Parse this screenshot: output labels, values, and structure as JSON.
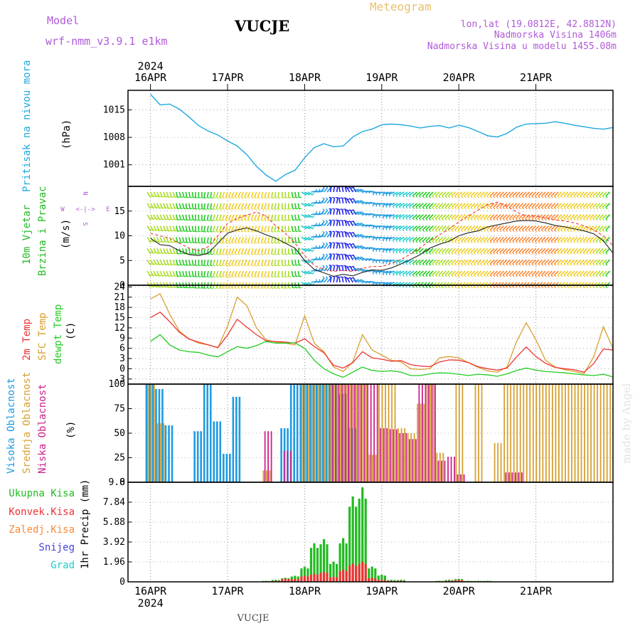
{
  "header": {
    "model_label": "Model",
    "model_name": "wrf-nmm_v3.9.1 e1km",
    "station": "VUCJE",
    "product": "Meteogram",
    "lonlat": "lon,lat (19.0812E, 42.8812N)",
    "elevation": "Nadmorska Visina 1406m",
    "model_elevation": "Nadmorska Visina u modelu 1455.08m",
    "footer_station": "VUCJE",
    "credit": "made by Angel"
  },
  "colors": {
    "pressure": "#1ea8e0",
    "wind_speed": "#222222",
    "wind_gust": "#ee3333",
    "temp_2m": "#ee3333",
    "temp_sfc": "#d8a030",
    "temp_dew": "#22cc22",
    "cloud_high": "#1e9be0",
    "cloud_mid": "#d8a030",
    "cloud_low": "#cc2288",
    "precip_total": "#22bb22",
    "precip_conv": "#ee3333",
    "precip_frozen": "#ff8833",
    "precip_snow": "#4444dd",
    "precip_graupel": "#22cccc",
    "header_purple": "#b05ad8",
    "header_orange": "#e8c070"
  },
  "chart_data": [
    {
      "type": "line",
      "panel": "pressure",
      "ylabel": [
        "Pritisak na nivou mora",
        "(hPa)"
      ],
      "yticks": [
        1001,
        1008,
        1015
      ],
      "ylim": [
        995.5,
        1020
      ],
      "year": "2024",
      "x_categories": [
        "16APR",
        "17APR",
        "18APR",
        "19APR",
        "20APR",
        "21APR"
      ],
      "x_hours": [
        0,
        3,
        6,
        9,
        12,
        15,
        18,
        21,
        24,
        27,
        30,
        33,
        36,
        39,
        42,
        45,
        48,
        51,
        54,
        57,
        60,
        63,
        66,
        69,
        72,
        75,
        78,
        81,
        84,
        87,
        90,
        93,
        96,
        99,
        102,
        105,
        108,
        111,
        114,
        117,
        120,
        123,
        126,
        129,
        132,
        135,
        138,
        141,
        144
      ],
      "series": [
        {
          "values": [
            1019.0,
            1016.3,
            1016.5,
            1015.2,
            1013.2,
            1011.0,
            1009.6,
            1008.6,
            1007.1,
            1005.8,
            1003.6,
            1000.6,
            998.4,
            996.8,
            998.5,
            999.6,
            1002.8,
            1005.4,
            1006.4,
            1005.6,
            1005.8,
            1008.1,
            1009.5,
            1010.1,
            1011.2,
            1011.4,
            1011.2,
            1010.9,
            1010.4,
            1010.8,
            1011.0,
            1010.4,
            1011.1,
            1010.5,
            1009.5,
            1008.4,
            1008.1,
            1009.0,
            1010.6,
            1011.4,
            1011.5,
            1011.6,
            1012.0,
            1011.6,
            1011.1,
            1010.7,
            1010.3,
            1010.1,
            1010.5
          ]
        }
      ]
    },
    {
      "type": "line",
      "panel": "wind",
      "ylabel": [
        "10m Vjetar",
        "Brzina i Pravac",
        "(m/s)"
      ],
      "compass_labels": [
        "N",
        "S",
        "W",
        "E"
      ],
      "yticks": [
        0,
        5,
        10,
        15
      ],
      "ylim": [
        0,
        20
      ],
      "x_hours": [
        0,
        3,
        6,
        9,
        12,
        15,
        18,
        21,
        24,
        27,
        30,
        33,
        36,
        39,
        42,
        45,
        48,
        51,
        54,
        57,
        60,
        63,
        66,
        69,
        72,
        75,
        78,
        81,
        84,
        87,
        90,
        93,
        96,
        99,
        102,
        105,
        108,
        111,
        114,
        117,
        120,
        123,
        126,
        129,
        132,
        135,
        138,
        141,
        144
      ],
      "series": [
        {
          "name": "speed",
          "values": [
            9.5,
            8.2,
            8.0,
            7.0,
            6.2,
            6.0,
            6.5,
            8.5,
            10.5,
            11.2,
            11.6,
            11.0,
            10.2,
            9.5,
            8.5,
            7.5,
            5.0,
            3.2,
            2.5,
            1.8,
            2.2,
            1.9,
            2.6,
            3.1,
            3.0,
            3.5,
            4.3,
            5.2,
            6.2,
            7.5,
            8.3,
            8.9,
            10.0,
            10.6,
            11.0,
            11.8,
            12.2,
            12.6,
            13.0,
            13.1,
            13.0,
            12.6,
            12.1,
            11.8,
            11.4,
            11.0,
            10.4,
            9.0,
            6.5
          ]
        },
        {
          "name": "gust",
          "values": [
            10.5,
            10.0,
            9.5,
            8.5,
            7.5,
            7.0,
            7.8,
            10.0,
            12.5,
            13.5,
            14.2,
            14.8,
            14.0,
            12.0,
            10.5,
            8.5,
            6.0,
            4.0,
            3.2,
            2.8,
            3.0,
            2.8,
            3.4,
            3.8,
            3.8,
            4.4,
            5.2,
            6.3,
            7.6,
            9.0,
            10.2,
            11.4,
            12.8,
            14.0,
            15.2,
            16.3,
            16.8,
            16.0,
            14.8,
            14.0,
            14.0,
            13.6,
            13.2,
            13.0,
            12.6,
            12.0,
            11.2,
            10.0,
            8.0
          ]
        }
      ],
      "direction_deg": [
        150,
        155,
        160,
        165,
        170,
        180,
        190,
        195,
        200,
        205,
        205,
        200,
        195,
        190,
        180,
        170,
        120,
        80,
        40,
        10,
        350,
        330,
        300,
        280,
        260,
        250,
        240,
        235,
        230,
        225,
        225,
        225,
        225,
        225,
        225,
        225,
        225,
        225,
        225,
        225,
        225,
        225,
        225,
        225,
        225,
        225,
        225,
        225,
        225
      ]
    },
    {
      "type": "line",
      "panel": "temperature",
      "ylabel": [
        "2m Temp",
        "SFC Temp",
        "dewpt Temp",
        "(C)"
      ],
      "yticks": [
        -3,
        0,
        3,
        6,
        9,
        12,
        15,
        18,
        21,
        24
      ],
      "ylim": [
        -4.5,
        24.5
      ],
      "x_hours": [
        0,
        3,
        6,
        9,
        12,
        15,
        18,
        21,
        24,
        27,
        30,
        33,
        36,
        39,
        42,
        45,
        48,
        51,
        54,
        57,
        60,
        63,
        66,
        69,
        72,
        75,
        78,
        81,
        84,
        87,
        90,
        93,
        96,
        99,
        102,
        105,
        108,
        111,
        114,
        117,
        120,
        123,
        126,
        129,
        132,
        135,
        138,
        141,
        144
      ],
      "series": [
        {
          "name": "2m Temp",
          "values": [
            15.0,
            16.6,
            13.8,
            10.7,
            8.7,
            7.8,
            7.0,
            6.2,
            9.9,
            14.5,
            12.2,
            10.0,
            8.2,
            8.0,
            7.8,
            7.5,
            8.8,
            6.5,
            4.7,
            1.0,
            0.2,
            1.8,
            5.0,
            3.2,
            2.8,
            2.2,
            2.4,
            1.2,
            0.8,
            0.6,
            2.0,
            2.6,
            2.5,
            1.8,
            0.6,
            0.0,
            -0.4,
            0.2,
            3.5,
            6.4,
            3.6,
            1.6,
            0.4,
            0.0,
            -0.3,
            -1.0,
            1.5,
            5.8,
            5.5
          ]
        },
        {
          "name": "SFC Temp",
          "values": [
            20.5,
            22.0,
            16.0,
            11.0,
            8.8,
            7.5,
            7.0,
            6.2,
            12.5,
            21.0,
            18.5,
            12.0,
            8.5,
            7.8,
            7.5,
            7.0,
            15.5,
            7.5,
            5.0,
            0.5,
            -0.8,
            2.0,
            10.0,
            5.5,
            4.0,
            2.5,
            2.0,
            0.0,
            -0.2,
            0.0,
            3.2,
            3.6,
            3.2,
            1.8,
            0.4,
            -0.6,
            -1.0,
            0.5,
            8.0,
            13.5,
            8.5,
            2.5,
            0.5,
            -0.3,
            -0.8,
            -1.4,
            3.5,
            12.3,
            6.0
          ]
        },
        {
          "name": "dewpt Temp",
          "values": [
            8.0,
            10.0,
            7.0,
            5.5,
            5.0,
            4.8,
            4.0,
            3.5,
            5.0,
            6.5,
            6.0,
            6.8,
            8.0,
            7.5,
            7.5,
            7.6,
            6.0,
            2.5,
            0.0,
            -1.5,
            -2.5,
            -1.0,
            0.5,
            -0.5,
            -0.8,
            -0.6,
            -1.0,
            -2.0,
            -2.0,
            -1.5,
            -1.2,
            -1.3,
            -1.6,
            -2.0,
            -1.6,
            -1.8,
            -2.2,
            -1.5,
            -0.5,
            0.2,
            -0.4,
            -0.8,
            -1.0,
            -1.2,
            -1.5,
            -1.8,
            -2.0,
            -1.6,
            -2.4
          ]
        }
      ]
    },
    {
      "type": "bar",
      "panel": "clouds",
      "ylabel": [
        "Visoka Oblacnost",
        "Srednja Oblacnost",
        "Niska Oblacnost",
        "(%)"
      ],
      "yticks": [
        0,
        25,
        50,
        75,
        100
      ],
      "ylim": [
        0,
        100
      ],
      "x_hours": [
        0,
        3,
        6,
        9,
        12,
        15,
        18,
        21,
        24,
        27,
        30,
        33,
        36,
        39,
        42,
        45,
        48,
        51,
        54,
        57,
        60,
        63,
        66,
        69,
        72,
        75,
        78,
        81,
        84,
        87,
        90,
        93,
        96,
        99,
        102,
        105,
        108,
        111,
        114,
        117,
        120,
        123,
        126,
        129,
        132,
        135,
        138,
        141,
        144
      ],
      "series": [
        {
          "name": "Visoka Oblacnost",
          "values": [
            100,
            95,
            58,
            0,
            0,
            52,
            100,
            62,
            29,
            87,
            0,
            0,
            0,
            0,
            55,
            100,
            100,
            100,
            100,
            100,
            90,
            55,
            0,
            0,
            0,
            0,
            0,
            0,
            0,
            0,
            0,
            0,
            0,
            0,
            0,
            0,
            0,
            0,
            0,
            0,
            0,
            0,
            0,
            0,
            0,
            0,
            0,
            0,
            0
          ]
        },
        {
          "name": "Srednja Oblacnost",
          "values": [
            100,
            60,
            0,
            0,
            0,
            0,
            0,
            0,
            0,
            0,
            0,
            0,
            12,
            0,
            0,
            0,
            100,
            100,
            100,
            100,
            100,
            100,
            100,
            28,
            100,
            100,
            55,
            50,
            80,
            100,
            30,
            0,
            100,
            0,
            100,
            0,
            40,
            100,
            100,
            100,
            100,
            100,
            100,
            100,
            100,
            100,
            100,
            100,
            100
          ]
        },
        {
          "name": "Niska Oblacnost",
          "values": [
            0,
            0,
            0,
            0,
            0,
            0,
            0,
            0,
            0,
            0,
            0,
            0,
            52,
            0,
            32,
            0,
            0,
            0,
            0,
            100,
            100,
            100,
            100,
            100,
            55,
            54,
            50,
            44,
            100,
            100,
            22,
            26,
            8,
            0,
            0,
            0,
            0,
            10,
            10,
            0,
            0,
            0,
            0,
            0,
            0,
            0,
            0,
            0,
            0
          ]
        }
      ]
    },
    {
      "type": "bar",
      "panel": "precip",
      "ylabel": [
        "1hr Precip (mm)"
      ],
      "legend": [
        "Ukupna Kisa",
        "Konvek.Kisa",
        "Zaledj.Kisa",
        "Snijeg",
        "Grad"
      ],
      "yticks": [
        "0",
        "1.96",
        "3.92",
        "5.88",
        "7.84",
        "9.8"
      ],
      "ylim": [
        0,
        9.8
      ],
      "x_hours": [
        0,
        3,
        6,
        9,
        12,
        15,
        18,
        21,
        24,
        27,
        30,
        33,
        36,
        39,
        42,
        45,
        48,
        51,
        54,
        57,
        60,
        63,
        66,
        69,
        72,
        75,
        78,
        81,
        84,
        87,
        90,
        93,
        96,
        99,
        102,
        105,
        108,
        111,
        114,
        117,
        120,
        123,
        126,
        129,
        132,
        135,
        138,
        141,
        144
      ],
      "series": [
        {
          "name": "Ukupna Kisa",
          "values": [
            0,
            0,
            0,
            0,
            0,
            0,
            0,
            0,
            0,
            0,
            0,
            0,
            0.1,
            0.2,
            0.4,
            0.6,
            1.5,
            3.8,
            4.2,
            2.0,
            4.3,
            8.4,
            9.3,
            1.5,
            0.7,
            0.2,
            0.2,
            0,
            0,
            0,
            0.1,
            0.2,
            0.3,
            0.1,
            0.1,
            0.1,
            0,
            0,
            0,
            0,
            0.05,
            0,
            0,
            0,
            0,
            0,
            0,
            0,
            0
          ]
        },
        {
          "name": "Konvek.Kisa",
          "values": [
            0,
            0,
            0,
            0,
            0,
            0,
            0,
            0,
            0,
            0,
            0,
            0,
            0.05,
            0.1,
            0.3,
            0.3,
            0.6,
            0.8,
            1.0,
            0.5,
            1.2,
            1.8,
            2.0,
            0.4,
            0.2,
            0.1,
            0.1,
            0,
            0,
            0,
            0.05,
            0.1,
            0.2,
            0.05,
            0.05,
            0.05,
            0,
            0,
            0,
            0,
            0.05,
            0,
            0,
            0,
            0,
            0,
            0,
            0,
            0
          ]
        }
      ]
    }
  ]
}
